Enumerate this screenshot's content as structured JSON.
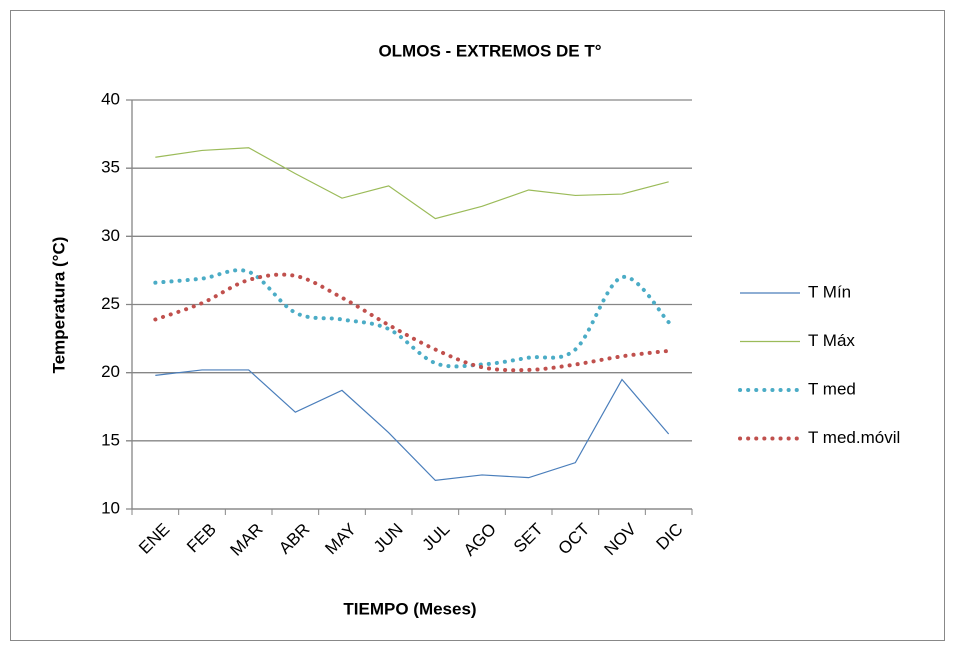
{
  "chart_data": {
    "type": "line",
    "title": "OLMOS - EXTREMOS DE T°",
    "x_label": "TIEMPO (Meses)",
    "y_label": "Temperatura (°C)",
    "categories": [
      "ENE",
      "FEB",
      "MAR",
      "ABR",
      "MAY",
      "JUN",
      "JUL",
      "AGO",
      "SET",
      "OCT",
      "NOV",
      "DIC"
    ],
    "ylim": [
      10,
      40
    ],
    "yticks": [
      10,
      15,
      20,
      25,
      30,
      35,
      40
    ],
    "grid": true,
    "legend": "right",
    "series": [
      {
        "name": "T Mín",
        "color": "#4a7ebb",
        "style": "solid",
        "smooth": false,
        "values": [
          19.8,
          20.2,
          20.2,
          17.1,
          18.7,
          15.6,
          12.1,
          12.5,
          12.3,
          13.4,
          19.5,
          15.5
        ]
      },
      {
        "name": "T Máx",
        "color": "#9bbb59",
        "style": "solid",
        "smooth": false,
        "values": [
          35.8,
          36.3,
          36.5,
          34.6,
          32.8,
          33.7,
          31.3,
          32.2,
          33.4,
          33.0,
          33.1,
          34.0
        ]
      },
      {
        "name": "T med",
        "color": "#4bacc6",
        "style": "dotted",
        "smooth": true,
        "values": [
          26.6,
          26.9,
          27.4,
          24.4,
          23.9,
          23.2,
          20.7,
          20.6,
          21.1,
          21.7,
          27.0,
          23.7
        ]
      },
      {
        "name": "T med.móvil",
        "color": "#c0504d",
        "style": "dotted",
        "smooth": true,
        "values": [
          23.9,
          25.1,
          26.8,
          27.1,
          25.5,
          23.5,
          21.7,
          20.4,
          20.2,
          20.6,
          21.2,
          21.6
        ]
      }
    ]
  }
}
